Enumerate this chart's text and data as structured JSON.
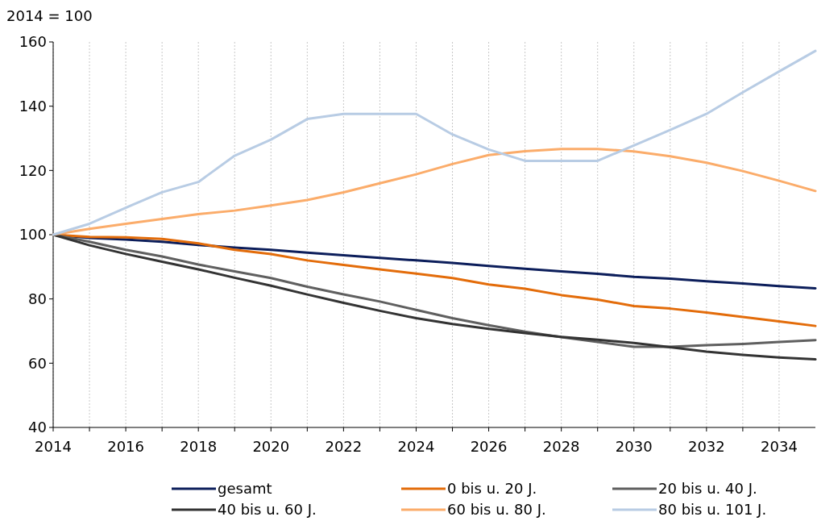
{
  "chart_data": {
    "type": "line",
    "ylabel": "2014 = 100",
    "x": [
      2014,
      2015,
      2016,
      2017,
      2018,
      2019,
      2020,
      2021,
      2022,
      2023,
      2024,
      2025,
      2026,
      2027,
      2028,
      2029,
      2030,
      2031,
      2032,
      2033,
      2034,
      2035
    ],
    "xlim": [
      2014,
      2035
    ],
    "xticks": [
      2014,
      {
        "value": 2015,
        "label": null
      },
      2016,
      {
        "value": 2017,
        "label": null
      },
      2018,
      {
        "value": 2019,
        "label": null
      },
      2020,
      {
        "value": 2021,
        "label": null
      },
      2022,
      {
        "value": 2023,
        "label": null
      },
      2024,
      {
        "value": 2025,
        "label": null
      },
      2026,
      {
        "value": 2027,
        "label": null
      },
      2028,
      {
        "value": 2029,
        "label": null
      },
      2030,
      {
        "value": 2031,
        "label": null
      },
      2032,
      {
        "value": 2033,
        "label": null
      },
      2034
    ],
    "ylim": [
      40,
      160
    ],
    "yticks": [
      40,
      60,
      80,
      100,
      120,
      140,
      160
    ],
    "grid": "x",
    "legend": "bottom",
    "marker": "none",
    "line_style": "solid",
    "series": [
      {
        "name": "gesamt",
        "color": "#0c1e5b",
        "values": [
          100,
          99,
          98.5,
          97.8,
          96.8,
          96,
          95.3,
          94.4,
          93.6,
          92.8,
          92,
          91.2,
          90.3,
          89.4,
          88.6,
          87.8,
          86.9,
          86.3,
          85.5,
          84.8,
          84,
          83.3
        ]
      },
      {
        "name": "0 bis u. 20 J.",
        "color": "#e36c0a",
        "values": [
          100,
          99.3,
          99.2,
          98.7,
          97.3,
          95.3,
          94,
          92,
          90.6,
          89.2,
          87.9,
          86.5,
          84.5,
          83.2,
          81.2,
          79.8,
          77.8,
          77,
          75.8,
          74.4,
          73,
          71.6
        ]
      },
      {
        "name": "20 bis u. 40 J.",
        "color": "#5f5f5f",
        "values": [
          100,
          97.8,
          95.3,
          93.2,
          90.7,
          88.6,
          86.5,
          83.8,
          81.4,
          79.2,
          76.6,
          74,
          71.8,
          69.8,
          68.1,
          66.6,
          65.1,
          65.1,
          65.6,
          66,
          66.6,
          67.2
        ]
      },
      {
        "name": "40 bis u. 60 J.",
        "color": "#333333",
        "values": [
          100,
          96.7,
          94,
          91.6,
          89.2,
          86.6,
          84.1,
          81.4,
          78.8,
          76.3,
          74,
          72.2,
          70.7,
          69.4,
          68.2,
          67.3,
          66.3,
          65,
          63.6,
          62.6,
          61.8,
          61.2
        ]
      },
      {
        "name": "60 bis u. 80 J.",
        "color": "#fbac6a",
        "values": [
          100,
          101.8,
          103.4,
          104.9,
          106.4,
          107.5,
          109.1,
          110.8,
          113.2,
          116,
          118.8,
          122,
          124.8,
          126,
          126.7,
          126.7,
          125.9,
          124.4,
          122.4,
          119.8,
          116.8,
          113.6
        ]
      },
      {
        "name": "80 bis u. 101 J.",
        "color": "#b8cce4",
        "values": [
          100,
          103.4,
          108.4,
          113.2,
          116.4,
          124.6,
          129.6,
          136,
          137.6,
          137.6,
          137.6,
          131.2,
          126.5,
          123,
          123,
          123,
          127.8,
          132.6,
          137.6,
          144.3,
          150.8,
          157.2
        ]
      }
    ]
  }
}
